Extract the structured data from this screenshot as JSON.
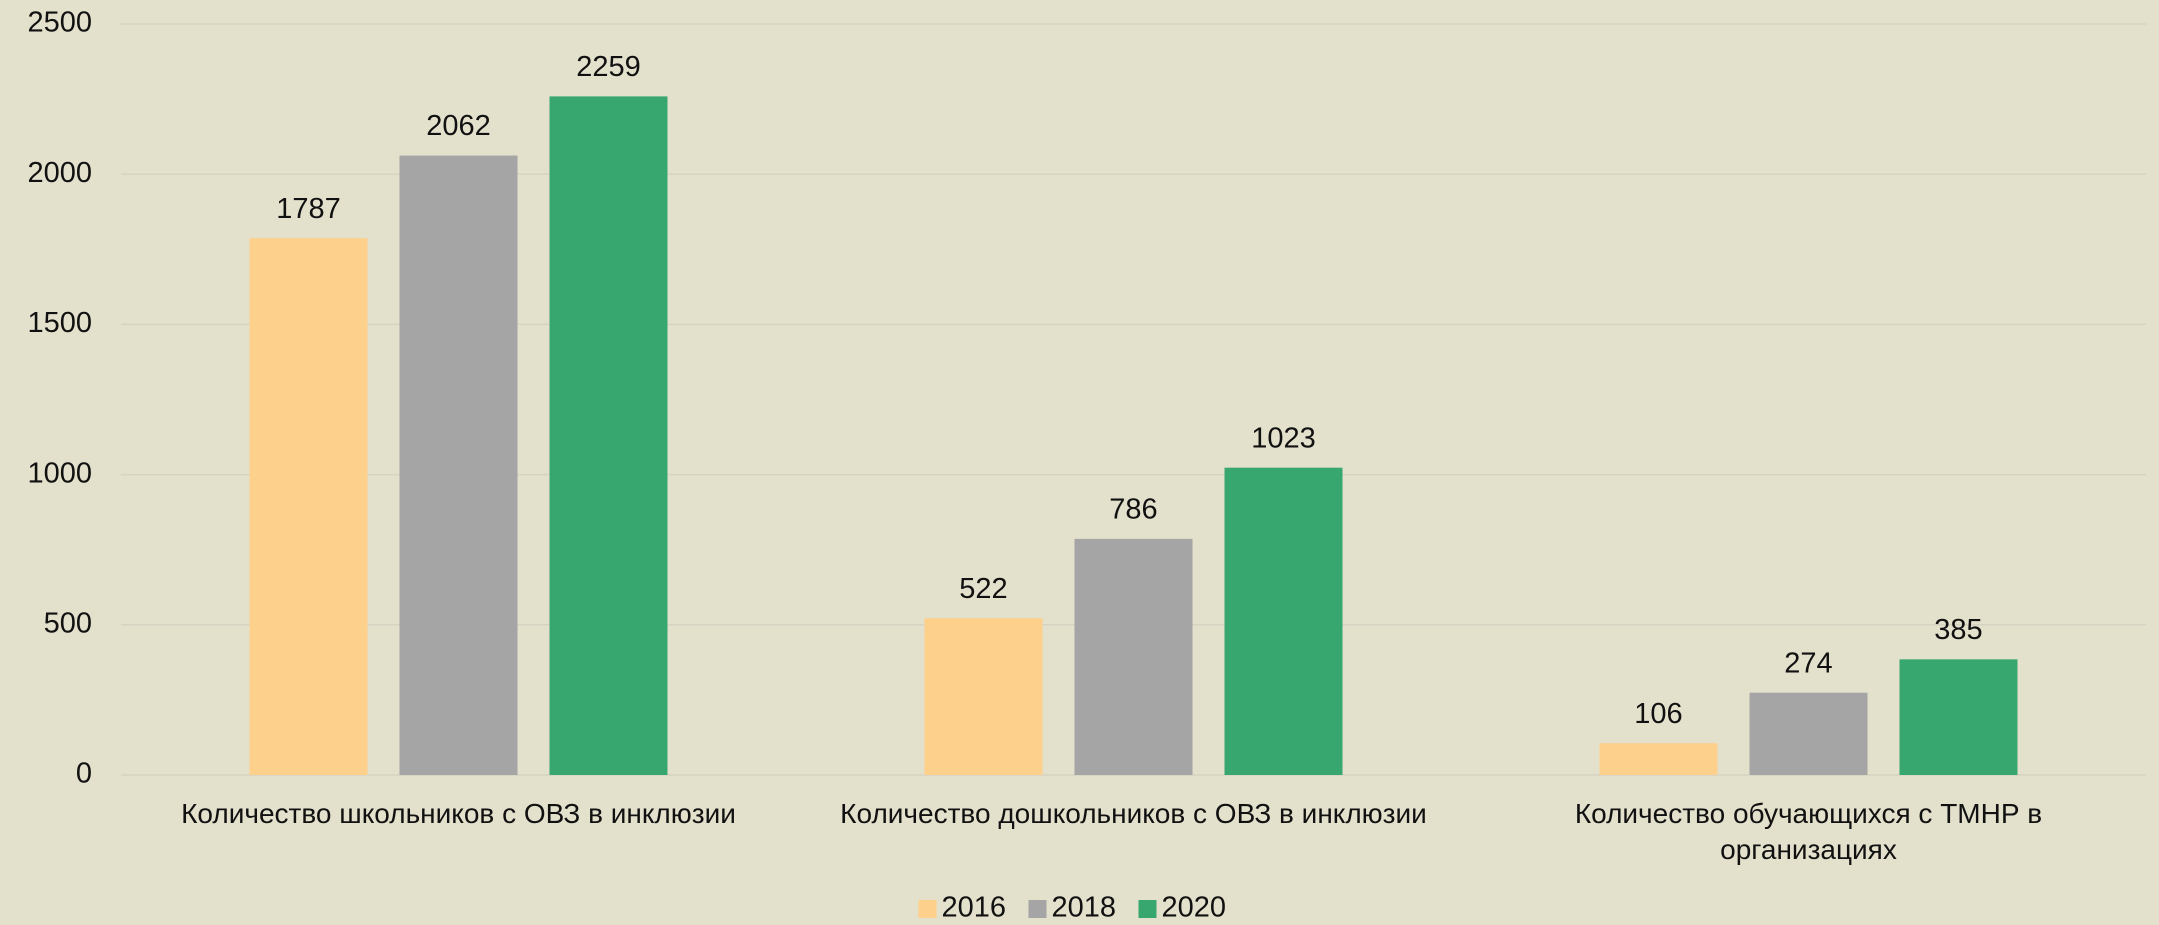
{
  "chart_data": {
    "type": "bar",
    "categories": [
      "Количество школьников с ОВЗ в инклюзии",
      "Количество дошкольников с ОВЗ в инклюзии",
      "Количество обучающихся с ТМНР в организациях"
    ],
    "series": [
      {
        "name": "2016",
        "color": "#fdd08c",
        "values": [
          1787,
          522,
          106
        ]
      },
      {
        "name": "2018",
        "color": "#a5a5a5",
        "values": [
          2062,
          786,
          274
        ]
      },
      {
        "name": "2020",
        "color": "#37a76f",
        "values": [
          2259,
          1023,
          385
        ]
      }
    ],
    "ylim": [
      0,
      2500
    ],
    "yticks": [
      0,
      500,
      1000,
      1500,
      2000,
      2500
    ],
    "grid": true,
    "legend": "bottom"
  }
}
